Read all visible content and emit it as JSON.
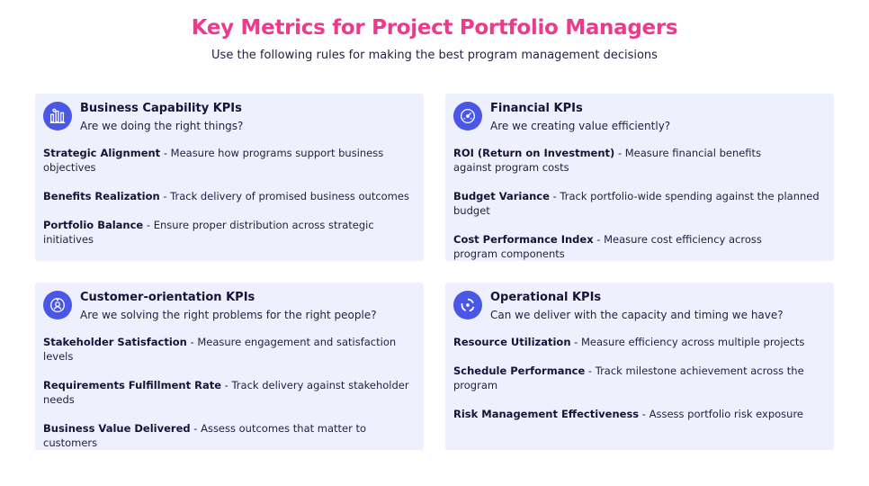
{
  "header": {
    "title": "Key Metrics for Project Portfolio Managers",
    "subtitle": "Use the following rules for making the best program management decisions"
  },
  "cards": [
    {
      "title": "Business Capability KPIs",
      "question": "Are we doing the right things?",
      "icon": "business-capability-icon",
      "items": [
        {
          "term": "Strategic Alignment",
          "desc": " - Measure how programs support business objectives"
        },
        {
          "term": "Benefits Realization",
          "desc": " - Track delivery of promised business outcomes"
        },
        {
          "term": "Portfolio Balance",
          "desc": " - Ensure proper distribution across strategic initiatives"
        }
      ]
    },
    {
      "title": "Financial KPIs",
      "question": "Are we creating value efficiently?",
      "icon": "financial-gauge-icon",
      "items": [
        {
          "term": "ROI (Return on Investment)",
          "desc": " - Measure financial benefits against program costs"
        },
        {
          "term": "Budget Variance",
          "desc": " - Track portfolio-wide spending against the planned budget"
        },
        {
          "term": "Cost Performance Index",
          "desc": " - Measure cost efficiency across program components"
        }
      ]
    },
    {
      "title": "Customer-orientation KPIs",
      "question": "Are we solving the right problems for the right people?",
      "icon": "customer-star-icon",
      "items": [
        {
          "term": "Stakeholder Satisfaction",
          "desc": " - Measure engagement and satisfaction levels"
        },
        {
          "term": "Requirements Fulfillment Rate",
          "desc": " - Track delivery against stakeholder needs"
        },
        {
          "term": "Business Value Delivered",
          "desc": " - Assess outcomes that matter to customers"
        }
      ]
    },
    {
      "title": "Operational KPIs",
      "question": "Can we deliver with the capacity and timing we have?",
      "icon": "operational-cycle-icon",
      "items": [
        {
          "term": "Resource Utilization",
          "desc": " - Measure efficiency across multiple projects"
        },
        {
          "term": "Schedule Performance",
          "desc": " - Track milestone achievement across the program"
        },
        {
          "term": "Risk Management Effectiveness",
          "desc": " - Assess portfolio risk exposure"
        }
      ]
    }
  ],
  "colors": {
    "title": "#ee3a8c",
    "card_bg": "#eef0fd",
    "icon_bg": "#4a57e6"
  }
}
